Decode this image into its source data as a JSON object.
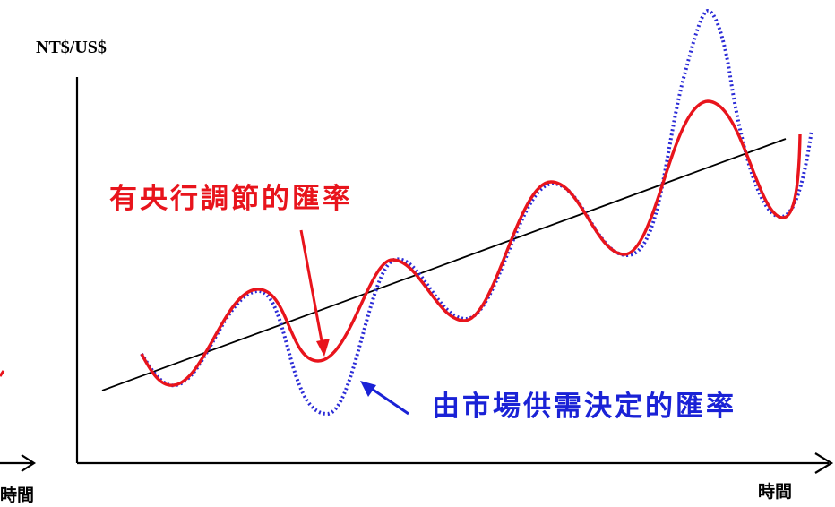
{
  "diagram": {
    "y_axis_label": "NT$/US$",
    "x_axis_label": "時間",
    "x_axis_label_left": "時間",
    "annotations": {
      "central_bank": {
        "text": "有央行調節的匯率",
        "color": "#e8141c"
      },
      "market": {
        "text": "由市場供需決定的匯率",
        "color": "#1a22d6"
      }
    },
    "series": {
      "central_bank_line_color": "#e8141c",
      "market_line_color": "#2b2bd6",
      "trend_line_color": "#000000"
    }
  }
}
